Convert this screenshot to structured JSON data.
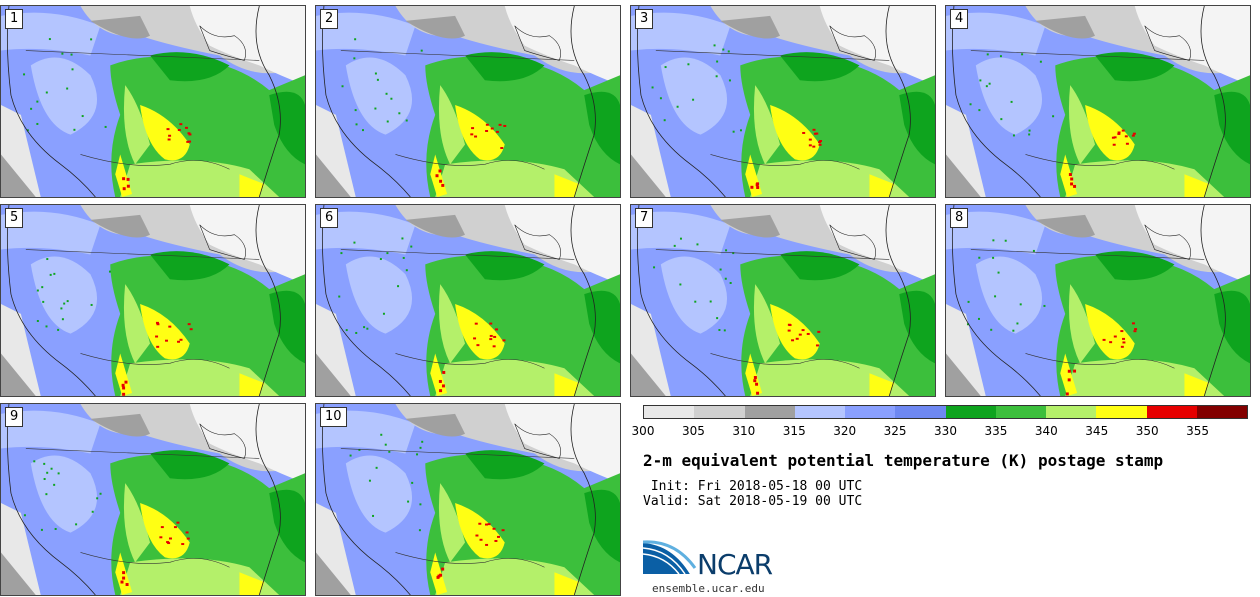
{
  "panels": [
    {
      "label": "1"
    },
    {
      "label": "2"
    },
    {
      "label": "3"
    },
    {
      "label": "4"
    },
    {
      "label": "5"
    },
    {
      "label": "6"
    },
    {
      "label": "7"
    },
    {
      "label": "8"
    },
    {
      "label": "9"
    },
    {
      "label": "10"
    }
  ],
  "colorbar": {
    "colors": [
      "#e8e8e8",
      "#d0d0d0",
      "#a0a0a0",
      "#b4c5ff",
      "#8aa0ff",
      "#6e88f2",
      "#0ea41e",
      "#3cbf3c",
      "#b4f06a",
      "#ffff14",
      "#e60000",
      "#820000"
    ],
    "ticks": [
      "300",
      "305",
      "310",
      "315",
      "320",
      "325",
      "330",
      "335",
      "340",
      "345",
      "350",
      "355"
    ]
  },
  "title": "2-m equivalent potential temperature (K) postage stamp",
  "init": " Init: Fri 2018-05-18 00 UTC",
  "valid": "Valid: Sat 2018-05-19 00 UTC",
  "logo": {
    "text": "NCAR",
    "site": "ensemble.ucar.edu"
  }
}
